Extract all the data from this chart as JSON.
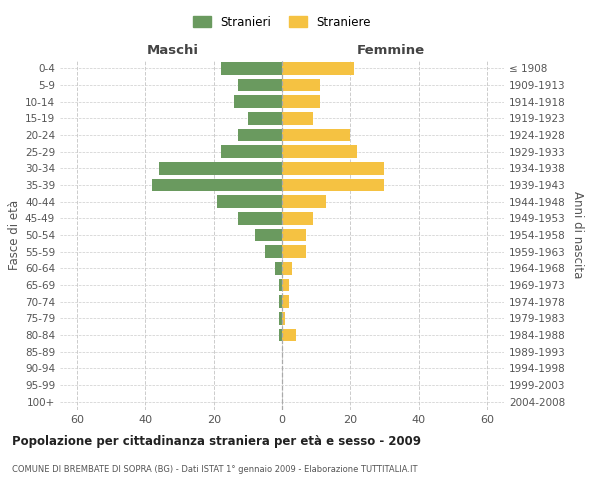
{
  "age_groups": [
    "0-4",
    "5-9",
    "10-14",
    "15-19",
    "20-24",
    "25-29",
    "30-34",
    "35-39",
    "40-44",
    "45-49",
    "50-54",
    "55-59",
    "60-64",
    "65-69",
    "70-74",
    "75-79",
    "80-84",
    "85-89",
    "90-94",
    "95-99",
    "100+"
  ],
  "birth_years": [
    "2004-2008",
    "1999-2003",
    "1994-1998",
    "1989-1993",
    "1984-1988",
    "1979-1983",
    "1974-1978",
    "1969-1973",
    "1964-1968",
    "1959-1963",
    "1954-1958",
    "1949-1953",
    "1944-1948",
    "1939-1943",
    "1934-1938",
    "1929-1933",
    "1924-1928",
    "1919-1923",
    "1914-1918",
    "1909-1913",
    "≤ 1908"
  ],
  "males": [
    18,
    13,
    14,
    10,
    13,
    18,
    36,
    38,
    19,
    13,
    8,
    5,
    2,
    1,
    1,
    1,
    1,
    0,
    0,
    0,
    0
  ],
  "females": [
    21,
    11,
    11,
    9,
    20,
    22,
    30,
    30,
    13,
    9,
    7,
    7,
    3,
    2,
    2,
    1,
    4,
    0,
    0,
    0,
    0
  ],
  "male_color": "#6a9a5f",
  "female_color": "#f5c242",
  "grid_color": "#cccccc",
  "background_color": "#ffffff",
  "title": "Popolazione per cittadinanza straniera per età e sesso - 2009",
  "subtitle": "COMUNE DI BREMBATE DI SOPRA (BG) - Dati ISTAT 1° gennaio 2009 - Elaborazione TUTTITALIA.IT",
  "xlabel_left": "Maschi",
  "xlabel_right": "Femmine",
  "ylabel_left": "Fasce di età",
  "ylabel_right": "Anni di nascita",
  "legend_male": "Stranieri",
  "legend_female": "Straniere",
  "xlim": 65,
  "bar_height": 0.75
}
